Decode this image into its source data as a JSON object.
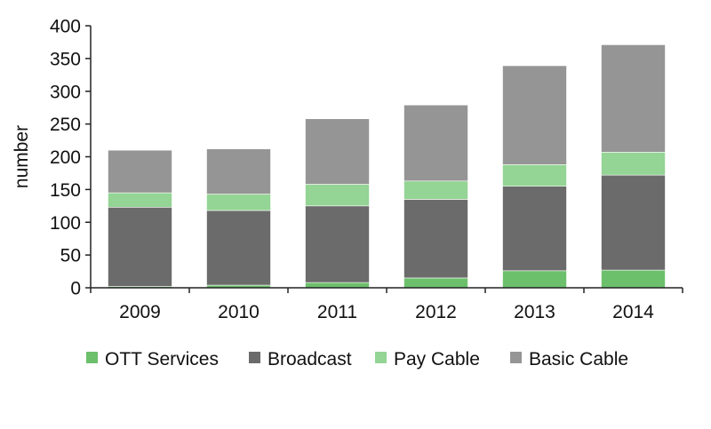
{
  "chart_data": {
    "type": "bar",
    "stacked": true,
    "title": "",
    "xlabel": "",
    "ylabel": "number",
    "ylim": [
      0,
      400
    ],
    "yticks": [
      0,
      50,
      100,
      150,
      200,
      250,
      300,
      350,
      400
    ],
    "categories": [
      "2009",
      "2010",
      "2011",
      "2012",
      "2013",
      "2014"
    ],
    "series": [
      {
        "name": "OTT Services",
        "color": "#6cc06c",
        "values": [
          2,
          4,
          8,
          15,
          26,
          27
        ]
      },
      {
        "name": "Broadcast",
        "color": "#6b6b6b",
        "values": [
          121,
          114,
          117,
          120,
          129,
          145
        ]
      },
      {
        "name": "Pay Cable",
        "color": "#94d494",
        "values": [
          22,
          25,
          33,
          28,
          33,
          35
        ]
      },
      {
        "name": "Basic Cable",
        "color": "#959595",
        "values": [
          65,
          69,
          100,
          116,
          151,
          164
        ]
      }
    ],
    "grid": false,
    "legend": "bottom"
  }
}
